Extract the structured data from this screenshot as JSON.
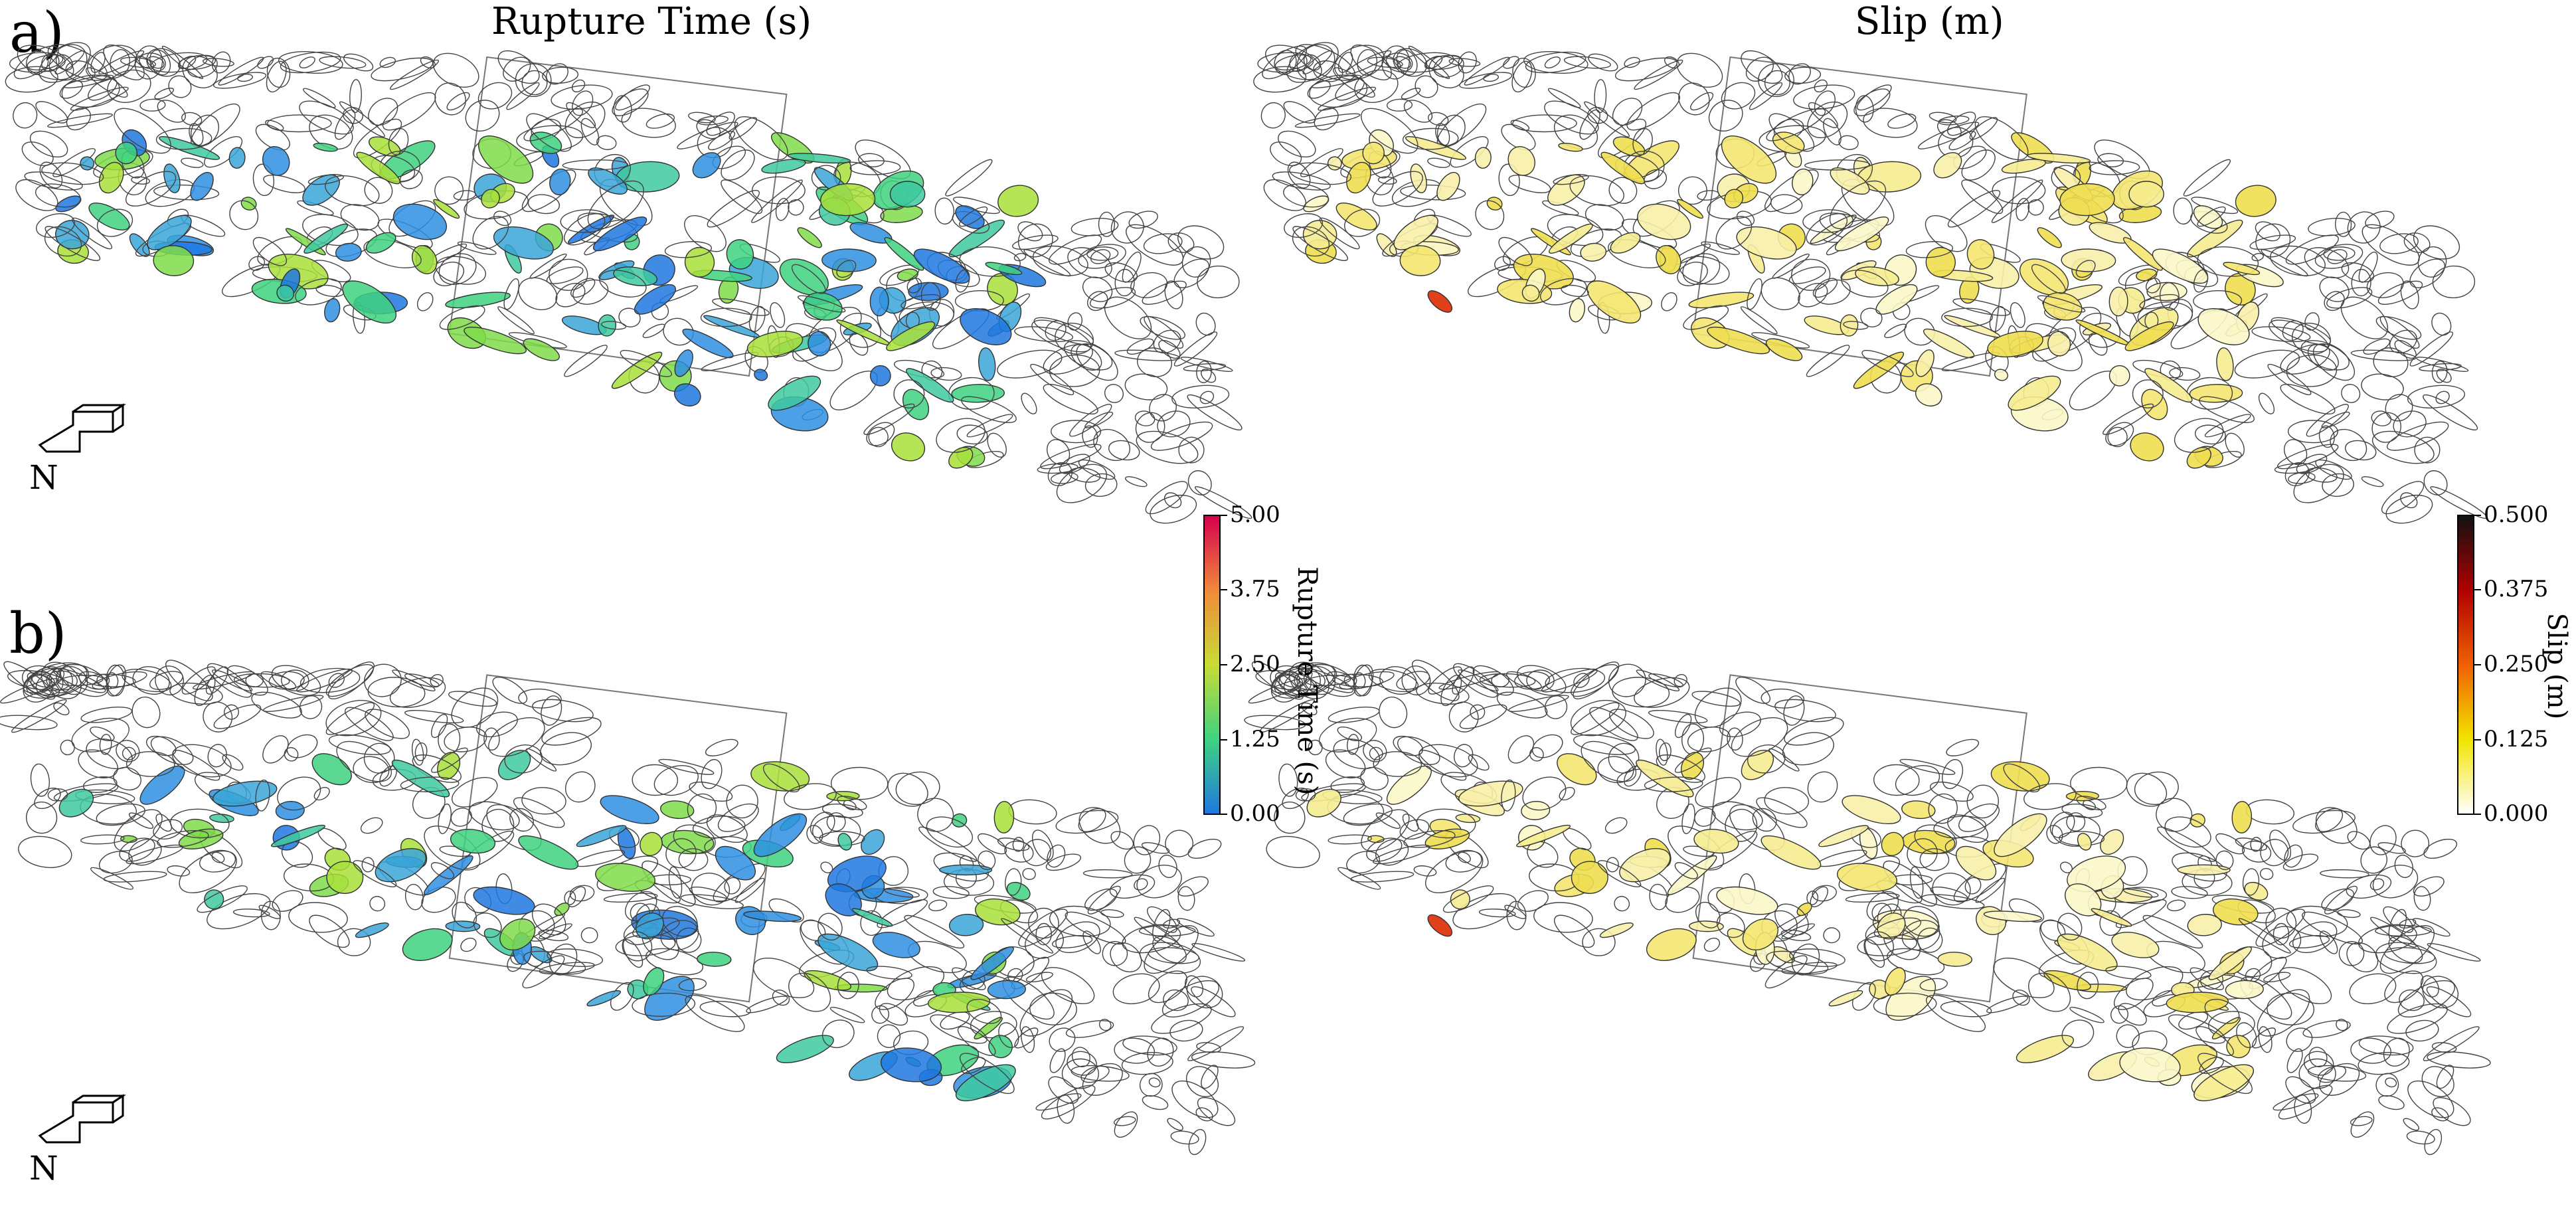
{
  "columns": {
    "left_title": "Rupture Time (s)",
    "right_title": "Slip (m)"
  },
  "panels": {
    "a_label": "a)",
    "b_label": "b)"
  },
  "compass": {
    "label": "N"
  },
  "colorbars": {
    "rupture": {
      "label": "Rupture Time (s)",
      "ticks": [
        "5.00",
        "3.75",
        "2.50",
        "1.25",
        "0.00"
      ],
      "colors": [
        "#d6004d",
        "#f08a3a",
        "#c8dc35",
        "#3ed280",
        "#1f78e0"
      ]
    },
    "slip": {
      "label": "Slip (m)",
      "ticks": [
        "0.500",
        "0.375",
        "0.250",
        "0.125",
        "0.000"
      ],
      "colors": [
        "#111111",
        "#b00000",
        "#f06000",
        "#f2e400",
        "#ffffff"
      ]
    }
  }
}
